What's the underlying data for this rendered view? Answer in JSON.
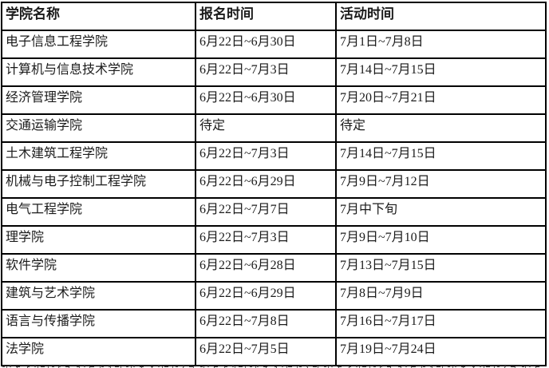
{
  "table": {
    "headers": [
      "学院名称",
      "报名时间",
      "活动时间"
    ],
    "rows": [
      [
        "电子信息工程学院",
        "6月22日~6月30日",
        "7月1日~7月8日"
      ],
      [
        "计算机与信息技术学院",
        "6月22日~7月3日",
        "7月14日~7月15日"
      ],
      [
        "经济管理学院",
        "6月22日~6月30日",
        "7月20日~7月21日"
      ],
      [
        "交通运输学院",
        "待定",
        "待定"
      ],
      [
        "土木建筑工程学院",
        "6月22日~7月3日",
        "7月14日~7月15日"
      ],
      [
        "机械与电子控制工程学院",
        "6月22日~6月29日",
        "7月9日~7月12日"
      ],
      [
        "电气工程学院",
        "6月22日~7月7日",
        "7月中下旬"
      ],
      [
        "理学院",
        "6月22日~7月3日",
        "7月9日~7月10日"
      ],
      [
        "软件学院",
        "6月22日~6月28日",
        "7月13日~7月15日"
      ],
      [
        "建筑与艺术学院",
        "6月22日~6月29日",
        "7月8日~7月9日"
      ],
      [
        "语言与传播学院",
        "6月22日~7月8日",
        "7月16日~7月17日"
      ],
      [
        "法学院",
        "6月22日~7月5日",
        "7月19日~7月24日"
      ]
    ]
  },
  "colors": {
    "border": "#000000",
    "text": "#1b1b1b",
    "background": "#ffffff"
  }
}
